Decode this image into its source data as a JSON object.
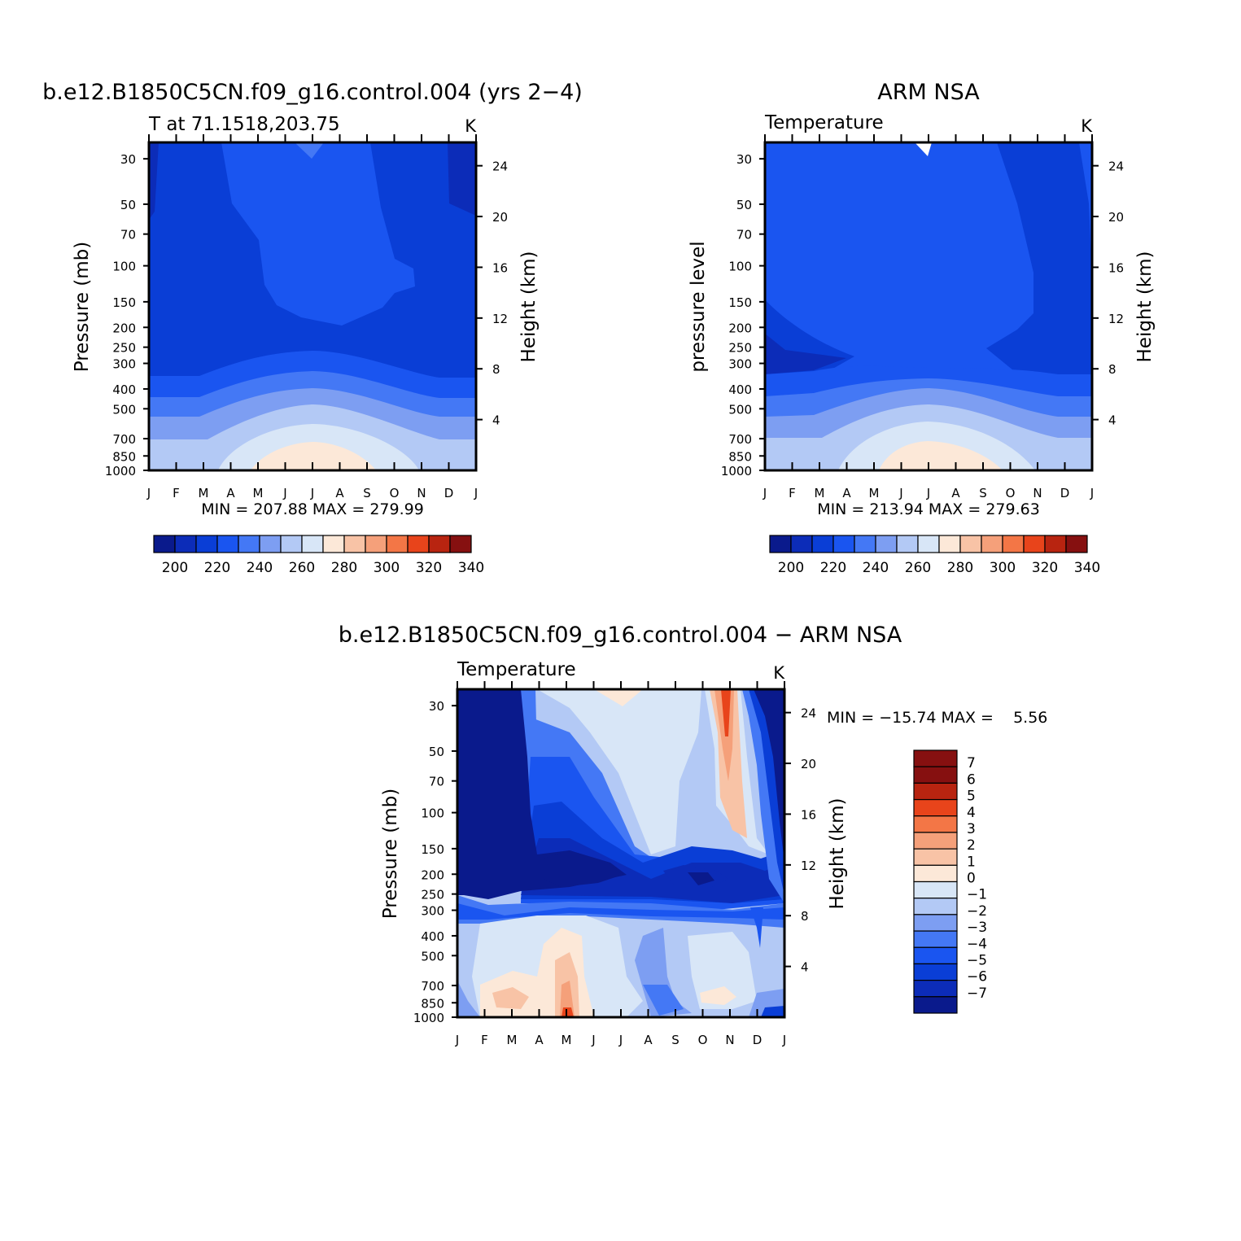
{
  "chart_data": [
    {
      "type": "heatmap",
      "title": "b.e12.B1850C5CN.f09_g16.control.004 (yrs 2−4)",
      "subtitle_left": "T at 71.1518,203.75",
      "units": "K",
      "ylabel_left": "Pressure (mb)",
      "ylabel_right": "Height (km)",
      "x_months": [
        "J",
        "F",
        "M",
        "A",
        "M",
        "J",
        "J",
        "A",
        "S",
        "O",
        "N",
        "D",
        "J"
      ],
      "y_pressure_ticks": [
        "30",
        "50",
        "70",
        "100",
        "150",
        "200",
        "250",
        "300",
        "400",
        "500",
        "700",
        "850",
        "1000"
      ],
      "y_height_ticks": [
        "24",
        "20",
        "16",
        "12",
        "8",
        "4"
      ],
      "min_max_text": "MIN = 207.88 MAX = 279.99",
      "colorbar_labels": [
        "200",
        "220",
        "240",
        "260",
        "280",
        "300",
        "320",
        "340"
      ],
      "colorbar_colors": [
        "#0a1a8c",
        "#0c2cb8",
        "#0a3ed6",
        "#1a55f0",
        "#4478f5",
        "#7d9ef2",
        "#b3c9f5",
        "#d8e6f7",
        "#fce8d8",
        "#f8c3a6",
        "#f5a07a",
        "#f37646",
        "#e8441b",
        "#b82410",
        "#861010"
      ],
      "surface_temp_by_month": [
        250,
        252,
        255,
        262,
        272,
        278,
        280,
        276,
        268,
        258,
        250,
        249,
        250
      ]
    },
    {
      "type": "heatmap",
      "title": "ARM NSA",
      "subtitle_left": "Temperature",
      "units": "K",
      "ylabel_left": "pressure level",
      "ylabel_right": "Height (km)",
      "x_months": [
        "J",
        "F",
        "M",
        "A",
        "M",
        "J",
        "J",
        "A",
        "S",
        "O",
        "N",
        "D",
        "J"
      ],
      "y_pressure_ticks": [
        "30",
        "50",
        "70",
        "100",
        "150",
        "200",
        "250",
        "300",
        "400",
        "500",
        "700",
        "850",
        "1000"
      ],
      "y_height_ticks": [
        "24",
        "20",
        "16",
        "12",
        "8",
        "4"
      ],
      "min_max_text": "MIN = 213.94 MAX = 279.63",
      "colorbar_labels": [
        "200",
        "220",
        "240",
        "260",
        "280",
        "300",
        "320",
        "340"
      ],
      "colorbar_colors": [
        "#0a1a8c",
        "#0c2cb8",
        "#0a3ed6",
        "#1a55f0",
        "#4478f5",
        "#7d9ef2",
        "#b3c9f5",
        "#d8e6f7",
        "#fce8d8",
        "#f8c3a6",
        "#f5a07a",
        "#f37646",
        "#e8441b",
        "#b82410",
        "#861010"
      ]
    },
    {
      "type": "heatmap",
      "title": "b.e12.B1850C5CN.f09_g16.control.004 − ARM NSA",
      "subtitle_left": "Temperature",
      "units": "K",
      "ylabel_left": "Pressure (mb)",
      "ylabel_right": "Height (km)",
      "x_months": [
        "J",
        "F",
        "M",
        "A",
        "M",
        "J",
        "J",
        "A",
        "S",
        "O",
        "N",
        "D",
        "J"
      ],
      "y_pressure_ticks": [
        "30",
        "50",
        "70",
        "100",
        "150",
        "200",
        "250",
        "300",
        "400",
        "500",
        "700",
        "850",
        "1000"
      ],
      "y_height_ticks": [
        "24",
        "20",
        "16",
        "12",
        "8",
        "4"
      ],
      "min_max_text": "MIN = −15.74 MAX =    5.56",
      "colorbar_labels": [
        "7",
        "6",
        "5",
        "4",
        "3",
        "2",
        "1",
        "0",
        "−1",
        "−2",
        "−3",
        "−4",
        "−5",
        "−6",
        "−7"
      ],
      "colorbar_colors": [
        "#861010",
        "#b82410",
        "#e8441b",
        "#f37646",
        "#f5a07a",
        "#f8c3a6",
        "#fce8d8",
        "#d8e6f7",
        "#b3c9f5",
        "#7d9ef2",
        "#4478f5",
        "#1a55f0",
        "#0a3ed6",
        "#0c2cb8",
        "#0a1a8c"
      ]
    }
  ]
}
